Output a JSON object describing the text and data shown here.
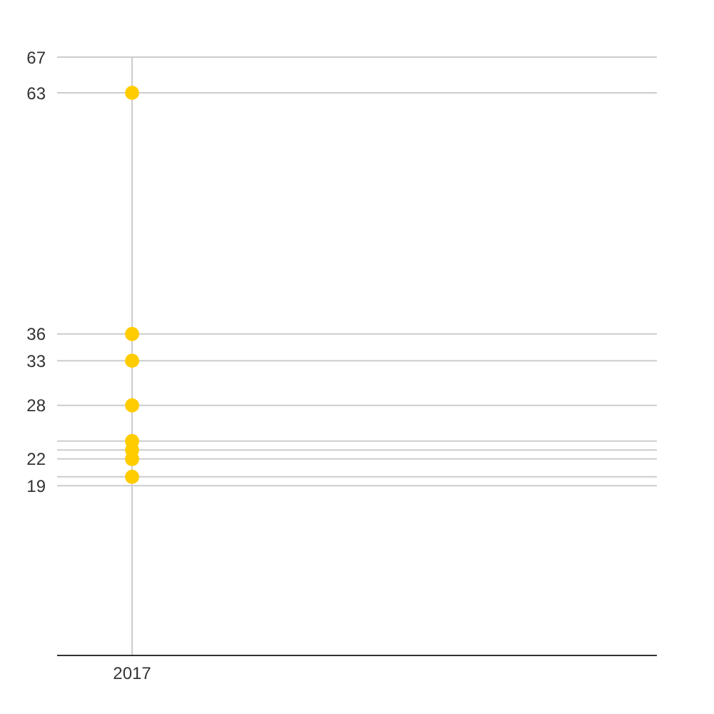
{
  "chart_data": {
    "type": "scatter",
    "categories": [
      "2017"
    ],
    "series": [
      {
        "color": "#ffcc00",
        "values": [
          63
        ]
      },
      {
        "color": "#ffcc00",
        "values": [
          36
        ]
      },
      {
        "color": "#ffcc00",
        "values": [
          33
        ]
      },
      {
        "color": "#ffcc00",
        "values": [
          28
        ]
      },
      {
        "color": "#ffcc00",
        "values": [
          24
        ]
      },
      {
        "color": "#ffcc00",
        "values": [
          23
        ]
      },
      {
        "color": "#ffcc00",
        "values": [
          22
        ]
      },
      {
        "color": "#ffcc00",
        "values": [
          20
        ]
      }
    ],
    "ylim": [
      0,
      67
    ],
    "yticks": [
      {
        "value": 0,
        "label": null
      },
      {
        "value": 19,
        "label": "19"
      },
      {
        "value": 20,
        "label": null
      },
      22,
      {
        "value": 23,
        "label": null
      },
      {
        "value": 24,
        "label": null
      },
      28,
      33,
      36,
      63,
      67
    ],
    "grid": true,
    "marker": "circle"
  }
}
